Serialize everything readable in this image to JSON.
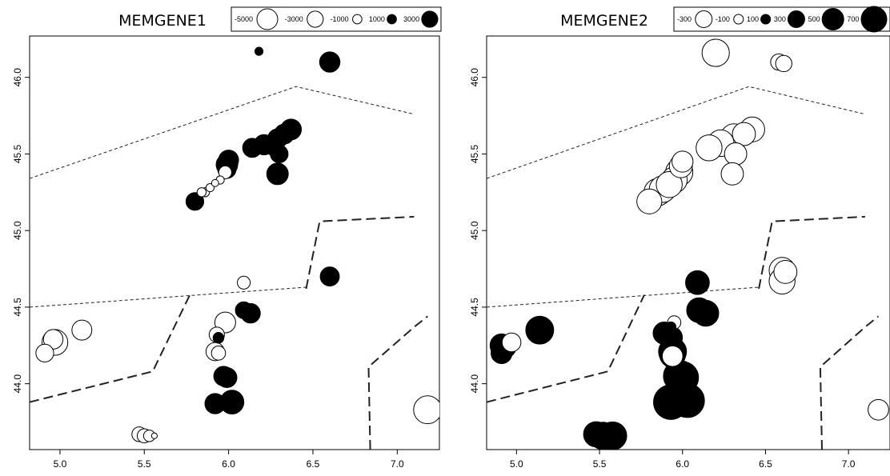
{
  "chart_data": [
    {
      "type": "bubble-map",
      "title": "MEMGENE1",
      "xlim": [
        4.82,
        7.25
      ],
      "ylim": [
        43.57,
        46.27
      ],
      "x_ticks": [
        5.0,
        5.5,
        6.0,
        6.5,
        7.0
      ],
      "y_ticks": [
        44.0,
        44.5,
        45.0,
        45.5,
        46.0
      ],
      "x_tick_labels": [
        "5.0",
        "5.5",
        "6.0",
        "6.5",
        "7.0"
      ],
      "y_tick_labels": [
        "44.0",
        "44.5",
        "45.0",
        "45.5",
        "46.0"
      ],
      "grid": false,
      "legend": {
        "position": "top-right",
        "entries": [
          {
            "label": "-5000",
            "value": -5000
          },
          {
            "label": "-3000",
            "value": -3000
          },
          {
            "label": "-1000",
            "value": -1000
          },
          {
            "label": "1000",
            "value": 1000
          },
          {
            "label": "3000",
            "value": 3000
          }
        ]
      },
      "max_abs_value": 5000,
      "points": [
        {
          "x": 6.18,
          "y": 46.17,
          "value": 400
        },
        {
          "x": 6.6,
          "y": 46.1,
          "value": 2500
        },
        {
          "x": 6.37,
          "y": 45.66,
          "value": 2600
        },
        {
          "x": 6.33,
          "y": 45.63,
          "value": 2400
        },
        {
          "x": 6.29,
          "y": 45.6,
          "value": 2300
        },
        {
          "x": 6.26,
          "y": 45.56,
          "value": 2500
        },
        {
          "x": 6.21,
          "y": 45.56,
          "value": 2500
        },
        {
          "x": 6.14,
          "y": 45.54,
          "value": 2200
        },
        {
          "x": 6.3,
          "y": 45.5,
          "value": 1900
        },
        {
          "x": 6.0,
          "y": 45.46,
          "value": 2400
        },
        {
          "x": 5.99,
          "y": 45.43,
          "value": 2800
        },
        {
          "x": 5.99,
          "y": 45.4,
          "value": 2000
        },
        {
          "x": 5.98,
          "y": 45.38,
          "value": -1000
        },
        {
          "x": 6.29,
          "y": 45.37,
          "value": 2800
        },
        {
          "x": 5.95,
          "y": 45.33,
          "value": -400
        },
        {
          "x": 5.92,
          "y": 45.31,
          "value": -300
        },
        {
          "x": 5.89,
          "y": 45.28,
          "value": -400
        },
        {
          "x": 5.86,
          "y": 45.25,
          "value": -500
        },
        {
          "x": 5.84,
          "y": 45.25,
          "value": -500
        },
        {
          "x": 5.8,
          "y": 45.19,
          "value": 1900
        },
        {
          "x": 6.6,
          "y": 44.73,
          "value": 500
        },
        {
          "x": 6.6,
          "y": 44.7,
          "value": 2200
        },
        {
          "x": 6.09,
          "y": 44.66,
          "value": -1000
        },
        {
          "x": 6.09,
          "y": 44.48,
          "value": 1700
        },
        {
          "x": 6.13,
          "y": 44.46,
          "value": 2300
        },
        {
          "x": 5.98,
          "y": 44.4,
          "value": -2600
        },
        {
          "x": 5.93,
          "y": 44.32,
          "value": -1400
        },
        {
          "x": 5.94,
          "y": 44.3,
          "value": 700
        },
        {
          "x": 5.92,
          "y": 44.21,
          "value": -2000
        },
        {
          "x": 5.94,
          "y": 44.2,
          "value": -1200
        },
        {
          "x": 5.97,
          "y": 44.05,
          "value": 2300
        },
        {
          "x": 5.99,
          "y": 44.04,
          "value": 2400
        },
        {
          "x": 5.92,
          "y": 43.87,
          "value": 2500
        },
        {
          "x": 6.02,
          "y": 43.88,
          "value": 3400
        },
        {
          "x": 4.91,
          "y": 44.2,
          "value": -1900
        },
        {
          "x": 4.97,
          "y": 44.27,
          "value": -4000
        },
        {
          "x": 4.96,
          "y": 44.29,
          "value": -2300
        },
        {
          "x": 5.13,
          "y": 44.35,
          "value": -2400
        },
        {
          "x": 5.47,
          "y": 43.67,
          "value": -1300
        },
        {
          "x": 5.5,
          "y": 43.66,
          "value": -1200
        },
        {
          "x": 5.53,
          "y": 43.66,
          "value": -800
        },
        {
          "x": 5.56,
          "y": 43.66,
          "value": -200
        },
        {
          "x": 7.18,
          "y": 43.83,
          "value": -4700
        }
      ]
    },
    {
      "type": "bubble-map",
      "title": "MEMGENE2",
      "xlim": [
        4.82,
        7.25
      ],
      "ylim": [
        43.57,
        46.27
      ],
      "x_ticks": [
        5.0,
        5.5,
        6.0,
        6.5,
        7.0
      ],
      "y_ticks": [
        44.0,
        44.5,
        45.0,
        45.5,
        46.0
      ],
      "x_tick_labels": [
        "5.0",
        "5.5",
        "6.0",
        "6.5",
        "7.0"
      ],
      "y_tick_labels": [
        "44.0",
        "44.5",
        "45.0",
        "45.5",
        "46.0"
      ],
      "grid": false,
      "legend": {
        "position": "top-right",
        "entries": [
          {
            "label": "-300",
            "value": -300
          },
          {
            "label": "-100",
            "value": -100
          },
          {
            "label": "100",
            "value": 100
          },
          {
            "label": "300",
            "value": 300
          },
          {
            "label": "500",
            "value": 500
          },
          {
            "label": "700",
            "value": 700
          }
        ]
      },
      "max_abs_value": 700,
      "points": [
        {
          "x": 6.2,
          "y": 46.16,
          "value": -420
        },
        {
          "x": 6.58,
          "y": 46.1,
          "value": -150
        },
        {
          "x": 6.61,
          "y": 46.09,
          "value": -150
        },
        {
          "x": 6.42,
          "y": 45.66,
          "value": -350
        },
        {
          "x": 6.37,
          "y": 45.63,
          "value": -300
        },
        {
          "x": 6.31,
          "y": 45.61,
          "value": -400
        },
        {
          "x": 6.23,
          "y": 45.57,
          "value": -400
        },
        {
          "x": 6.16,
          "y": 45.54,
          "value": -380
        },
        {
          "x": 6.32,
          "y": 45.5,
          "value": -280
        },
        {
          "x": 6.0,
          "y": 45.45,
          "value": -250
        },
        {
          "x": 5.99,
          "y": 45.42,
          "value": -300
        },
        {
          "x": 5.98,
          "y": 45.38,
          "value": -420
        },
        {
          "x": 6.3,
          "y": 45.37,
          "value": -280
        },
        {
          "x": 5.95,
          "y": 45.33,
          "value": -380
        },
        {
          "x": 5.92,
          "y": 45.3,
          "value": -380
        },
        {
          "x": 5.88,
          "y": 45.27,
          "value": -400
        },
        {
          "x": 5.85,
          "y": 45.25,
          "value": -420
        },
        {
          "x": 5.8,
          "y": 45.19,
          "value": -350
        },
        {
          "x": 6.6,
          "y": 44.74,
          "value": -380
        },
        {
          "x": 6.62,
          "y": 44.73,
          "value": -300
        },
        {
          "x": 6.6,
          "y": 44.67,
          "value": -380
        },
        {
          "x": 6.09,
          "y": 44.66,
          "value": 320
        },
        {
          "x": 6.1,
          "y": 44.48,
          "value": 350
        },
        {
          "x": 6.14,
          "y": 44.46,
          "value": 380
        },
        {
          "x": 5.95,
          "y": 44.4,
          "value": -100
        },
        {
          "x": 5.93,
          "y": 44.37,
          "value": 60
        },
        {
          "x": 5.89,
          "y": 44.33,
          "value": 280
        },
        {
          "x": 5.93,
          "y": 44.3,
          "value": 300
        },
        {
          "x": 5.94,
          "y": 44.21,
          "value": 440
        },
        {
          "x": 5.94,
          "y": 44.19,
          "value": 380
        },
        {
          "x": 5.94,
          "y": 44.18,
          "value": -240
        },
        {
          "x": 5.98,
          "y": 44.05,
          "value": 560
        },
        {
          "x": 6.0,
          "y": 44.04,
          "value": 580
        },
        {
          "x": 5.93,
          "y": 43.88,
          "value": 680
        },
        {
          "x": 6.03,
          "y": 43.89,
          "value": 650
        },
        {
          "x": 4.91,
          "y": 44.25,
          "value": 300
        },
        {
          "x": 4.93,
          "y": 44.24,
          "value": 280
        },
        {
          "x": 4.91,
          "y": 44.2,
          "value": 250
        },
        {
          "x": 4.97,
          "y": 44.27,
          "value": -200
        },
        {
          "x": 5.14,
          "y": 44.35,
          "value": 440
        },
        {
          "x": 5.48,
          "y": 43.67,
          "value": 360
        },
        {
          "x": 5.52,
          "y": 43.66,
          "value": 420
        },
        {
          "x": 5.55,
          "y": 43.65,
          "value": 460
        },
        {
          "x": 5.58,
          "y": 43.66,
          "value": 440
        },
        {
          "x": 7.18,
          "y": 43.83,
          "value": -240
        }
      ]
    }
  ]
}
